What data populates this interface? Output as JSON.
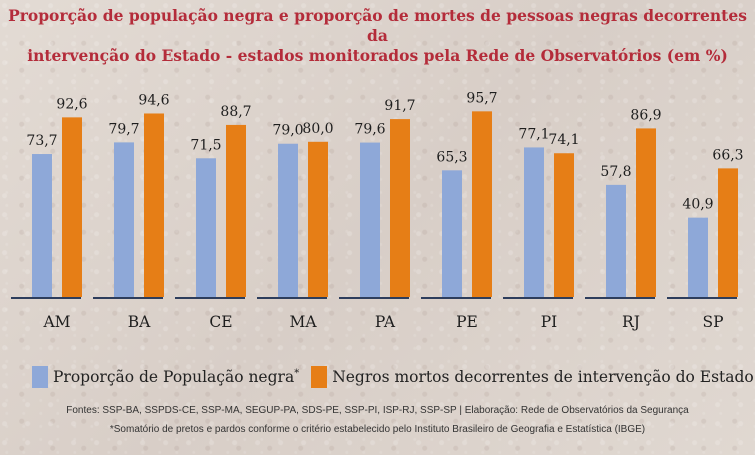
{
  "title_line1": "Proporção de população negra e proporção de mortes de pessoas negras decorrentes da",
  "title_line2": "intervenção do Estado - estados monitorados pela Rede de Observatórios (em %)",
  "colors": {
    "series1": "#8ea8d8",
    "series2": "#e67e16",
    "baseline": "#2d3d5c",
    "title": "#b42c3a"
  },
  "chart_data": {
    "type": "bar",
    "title": "Proporção de população negra e proporção de mortes de pessoas negras decorrentes da intervenção do Estado - estados monitorados pela Rede de Observatórios (em %)",
    "categories": [
      "AM",
      "BA",
      "CE",
      "MA",
      "PA",
      "PE",
      "PI",
      "RJ",
      "SP"
    ],
    "series": [
      {
        "name": "Proporção de População negra",
        "values": [
          73.7,
          79.7,
          71.5,
          79.0,
          79.6,
          65.3,
          77.1,
          57.8,
          40.9
        ],
        "labels": [
          "73,7",
          "79,7",
          "71,5",
          "79,0",
          "79,6",
          "65,3",
          "77,1",
          "57,8",
          "40,9"
        ]
      },
      {
        "name": "Negros mortos decorrentes de intervenção do Estado",
        "values": [
          92.6,
          94.6,
          88.7,
          80.0,
          91.7,
          95.7,
          74.1,
          86.9,
          66.3
        ],
        "labels": [
          "92,6",
          "94,6",
          "88,7",
          "80,0",
          "91,7",
          "95,7",
          "74,1",
          "86,9",
          "66,3"
        ]
      }
    ],
    "ylim": [
      0,
      100
    ],
    "grid": false,
    "legend_position": "bottom",
    "xlabel": "",
    "ylabel": ""
  },
  "legend": {
    "series1_label": "Proporção de População negra",
    "series1_mark": "*",
    "series2_label": "Negros mortos decorrentes de intervenção do Estado"
  },
  "footer": {
    "sources": "Fontes: SSP-BA, SSPDS-CE, SSP-MA, SEGUP-PA, SDS-PE, SSP-PI, ISP-RJ, SSP-SP | Elaboração: Rede de Observatórios da Segurança",
    "note": "*Somatório de pretos e pardos conforme o critério estabelecido pelo Instituto Brasileiro de Geografia e Estatística (IBGE)"
  }
}
